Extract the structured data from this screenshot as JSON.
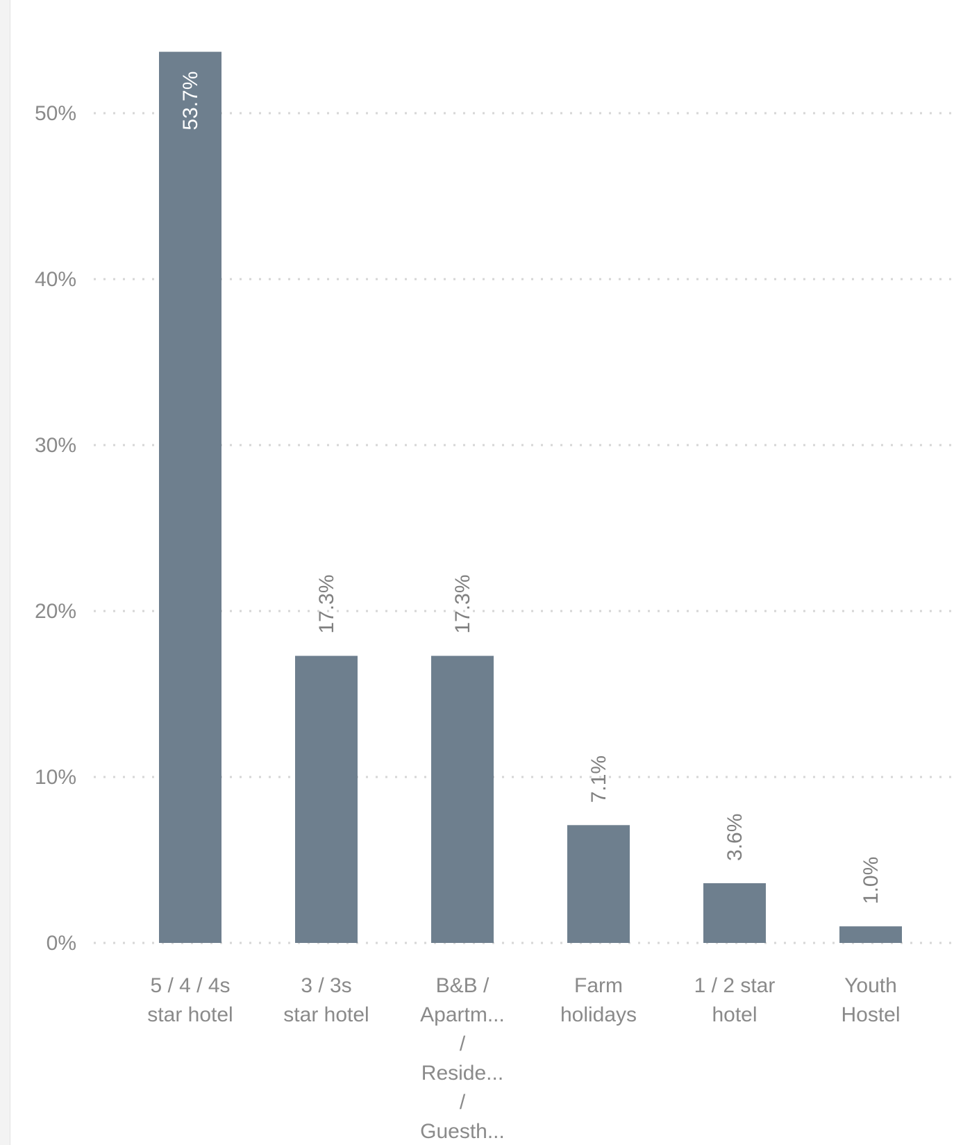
{
  "chart_data": {
    "type": "bar",
    "title": "",
    "xlabel": "",
    "ylabel": "",
    "categories": [
      [
        "5 / 4 / 4s",
        "star hotel"
      ],
      [
        "3 / 3s",
        "star hotel"
      ],
      [
        "B&B /",
        "Apartm...",
        "/",
        "Reside...",
        "/",
        "Guesth..."
      ],
      [
        "Farm",
        "holidays"
      ],
      [
        "1 / 2 star",
        "hotel"
      ],
      [
        "Youth",
        "Hostel"
      ]
    ],
    "values": [
      53.7,
      17.3,
      17.3,
      7.1,
      3.6,
      1.0
    ],
    "value_labels": [
      "53.7%",
      "17.3%",
      "17.3%",
      "7.1%",
      "3.6%",
      "1.0%"
    ],
    "yticks": [
      0,
      10,
      20,
      30,
      40,
      50
    ],
    "ytick_labels": [
      "0%",
      "10%",
      "20%",
      "30%",
      "40%",
      "50%"
    ],
    "ylim": [
      0,
      55
    ],
    "grid": true,
    "grid_style": "dotted horizontal",
    "legend": "none",
    "colors": {
      "bar": "#6e7f8e",
      "label_inside": "#ffffff",
      "label_outside": "#808080",
      "grid": "#d6d6d6",
      "tick_text": "#8a8a8a"
    }
  }
}
